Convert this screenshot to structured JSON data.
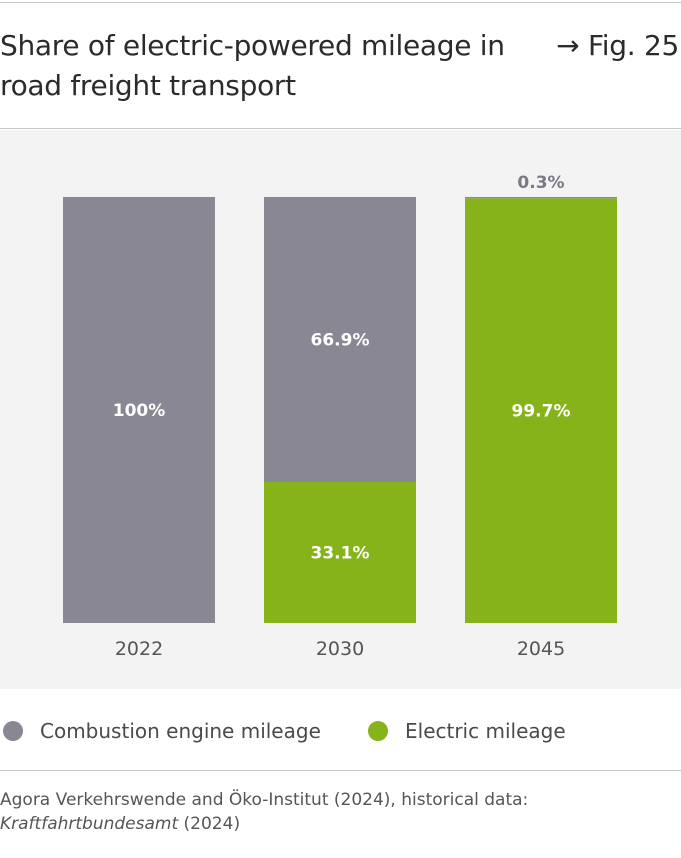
{
  "header": {
    "title": "Share of electric-powered mileage in road freight transport",
    "figure_ref": "→ Fig. 25"
  },
  "colors": {
    "combustion": "#888793",
    "electric": "#86b31a",
    "panel_bg": "#f3f3f3"
  },
  "chart_data": {
    "type": "bar",
    "stacked": true,
    "title": "Share of electric-powered mileage in road freight transport",
    "categories": [
      "2022",
      "2030",
      "2045"
    ],
    "ylim": [
      0,
      100
    ],
    "unit": "%",
    "series": [
      {
        "name": "Electric mileage",
        "color": "#86b31a",
        "values": [
          0,
          33.1,
          99.7
        ],
        "labels": [
          "",
          "33.1%",
          "99.7%"
        ]
      },
      {
        "name": "Combustion engine mileage",
        "color": "#888793",
        "values": [
          100,
          66.9,
          0.3
        ],
        "labels": [
          "100%",
          "66.9%",
          "0.3%"
        ]
      }
    ]
  },
  "legend": {
    "items": [
      {
        "label": "Combustion engine mileage",
        "color": "#888793"
      },
      {
        "label": "Electric mileage",
        "color": "#86b31a"
      }
    ]
  },
  "source": {
    "line1": "Agora Verkehrswende and Öko-Institut (2024), historical data:",
    "italic": "Kraftfahrtbundesamt",
    "tail": " (2024)"
  }
}
